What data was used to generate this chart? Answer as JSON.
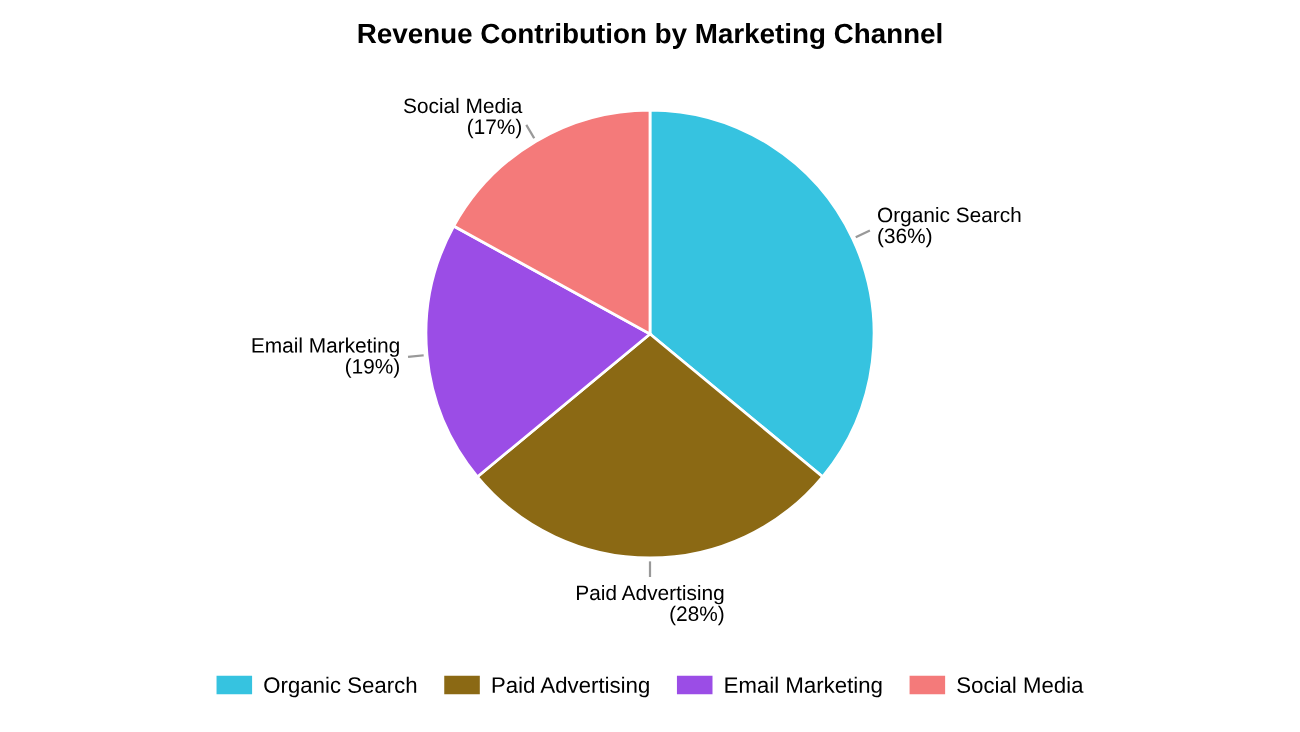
{
  "chart_data": {
    "type": "pie",
    "title": "Revenue Contribution by Marketing Channel",
    "categories": [
      "Organic Search",
      "Paid Advertising",
      "Email Marketing",
      "Social Media"
    ],
    "values": [
      36,
      28,
      19,
      17
    ],
    "colors": [
      "#36c3e0",
      "#8b6914",
      "#9b4de6",
      "#f47a7a"
    ],
    "value_labels": [
      "(36%)",
      "(28%)",
      "(19%)",
      "(17%)"
    ],
    "legend": "bottom"
  }
}
